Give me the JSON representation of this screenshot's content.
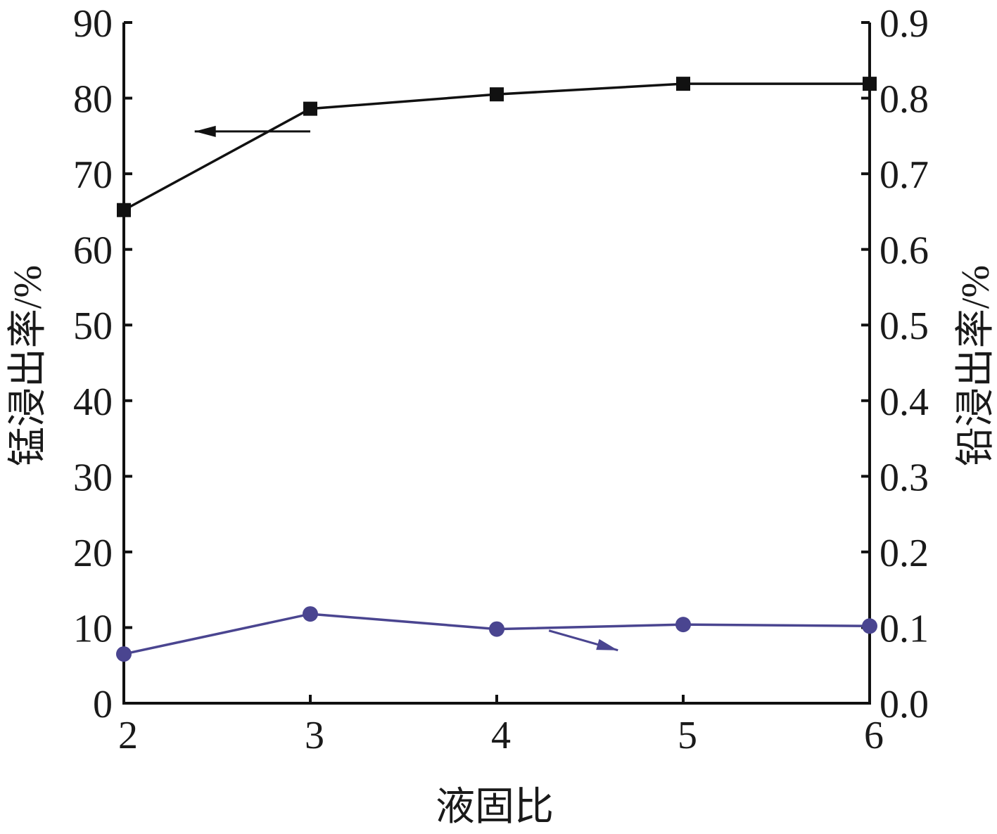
{
  "chart_data": {
    "type": "line",
    "xlabel": "液固比",
    "ylabel_left": "锰浸出率/%",
    "ylabel_right": "铅浸出率/%",
    "x": [
      2,
      3,
      4,
      5,
      6
    ],
    "xlim": [
      2,
      6
    ],
    "x_ticks": [
      "2",
      "3",
      "4",
      "5",
      "6"
    ],
    "ylim_left": [
      0,
      90
    ],
    "y_ticks_left": [
      "0",
      "10",
      "20",
      "30",
      "40",
      "50",
      "60",
      "70",
      "80",
      "90"
    ],
    "ylim_right": [
      0.0,
      0.9
    ],
    "y_ticks_right": [
      "0.0",
      "0.1",
      "0.2",
      "0.3",
      "0.4",
      "0.5",
      "0.6",
      "0.7",
      "0.8",
      "0.9"
    ],
    "grid": false,
    "series": [
      {
        "axis": "left",
        "marker": "square",
        "color": "#111111",
        "values": [
          65.2,
          78.6,
          80.5,
          81.9,
          81.9
        ]
      },
      {
        "axis": "right",
        "marker": "circle",
        "color": "#4a4590",
        "values": [
          0.065,
          0.118,
          0.098,
          0.104,
          0.102
        ]
      }
    ],
    "annotations": [
      {
        "type": "arrow",
        "color": "#111111",
        "points": [
          [
            3.0,
            75.6
          ],
          [
            2.38,
            75.6
          ]
        ]
      },
      {
        "type": "arrow",
        "color": "#4a4590",
        "points": [
          [
            4.28,
            9.6
          ],
          [
            4.65,
            7.0
          ]
        ]
      }
    ]
  }
}
